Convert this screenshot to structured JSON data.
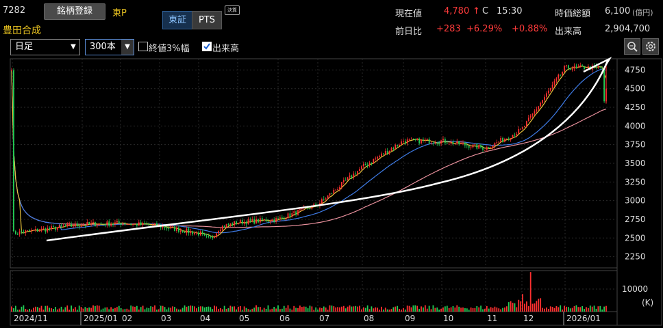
{
  "stock": {
    "code": "7282",
    "register_button": "銘柄登録",
    "market": "東P",
    "name": "豊田合成",
    "exchange_tabs": [
      "東証",
      "PTS"
    ],
    "earnings_badge": "決算"
  },
  "quote": {
    "current_label": "現在値",
    "current_value": "4,780",
    "current_arrow": "↑",
    "current_flag": "C",
    "time": "15:30",
    "mcap_label": "時価総額",
    "mcap_value": "6,100",
    "mcap_unit": "(億円)",
    "change_label": "前日比",
    "change_value": "+283",
    "change_pct": "+6.29%",
    "change_pct2": "+0.88%",
    "volume_label": "出来高",
    "volume_value": "2,904,700"
  },
  "controls": {
    "period": "日足",
    "count": "300本",
    "option_close3": "終値3%幅",
    "option_volume": "出来高",
    "option_close3_checked": false,
    "option_volume_checked": true
  },
  "icons": [
    "zoom-icon",
    "settings-icon"
  ],
  "colors": {
    "up_candle": "#ff3030",
    "down_candle": "#22cc55",
    "ma_short": "#e8c23a",
    "ma_mid": "#3e7be6",
    "ma_long": "#e8909c",
    "trend_arrow": "#ffffff",
    "grid": "#2a2a2a"
  },
  "chart_data": {
    "type": "candlestick",
    "price_axis": {
      "ylim": [
        2100,
        4900
      ],
      "ticks": [
        "4750",
        "4500",
        "4250",
        "4000",
        "3750",
        "3500",
        "3250",
        "3000",
        "2750",
        "2500",
        "2250"
      ]
    },
    "volume_axis": {
      "ticks": [
        "10000"
      ],
      "unit": "(K)"
    },
    "x_ticks": [
      "2024/11",
      "2025/01",
      "02",
      "03",
      "04",
      "05",
      "06",
      "07",
      "08",
      "09",
      "10",
      "11",
      "12",
      "2026/01"
    ],
    "price_trend_approx": [
      {
        "x": "2024/11",
        "close": 2560
      },
      {
        "x": "2025/01",
        "close": 2680
      },
      {
        "x": "02",
        "close": 2700
      },
      {
        "x": "03",
        "close": 2660
      },
      {
        "x": "04",
        "close": 2560
      },
      {
        "x": "05",
        "close": 2710
      },
      {
        "x": "06",
        "close": 2750
      },
      {
        "x": "07",
        "close": 2950
      },
      {
        "x": "08",
        "close": 3450
      },
      {
        "x": "09",
        "close": 3800
      },
      {
        "x": "10",
        "close": 3800
      },
      {
        "x": "11",
        "close": 3700
      },
      {
        "x": "12",
        "close": 3950
      },
      {
        "x": "2026/01",
        "close": 4780
      }
    ],
    "grid": true
  }
}
